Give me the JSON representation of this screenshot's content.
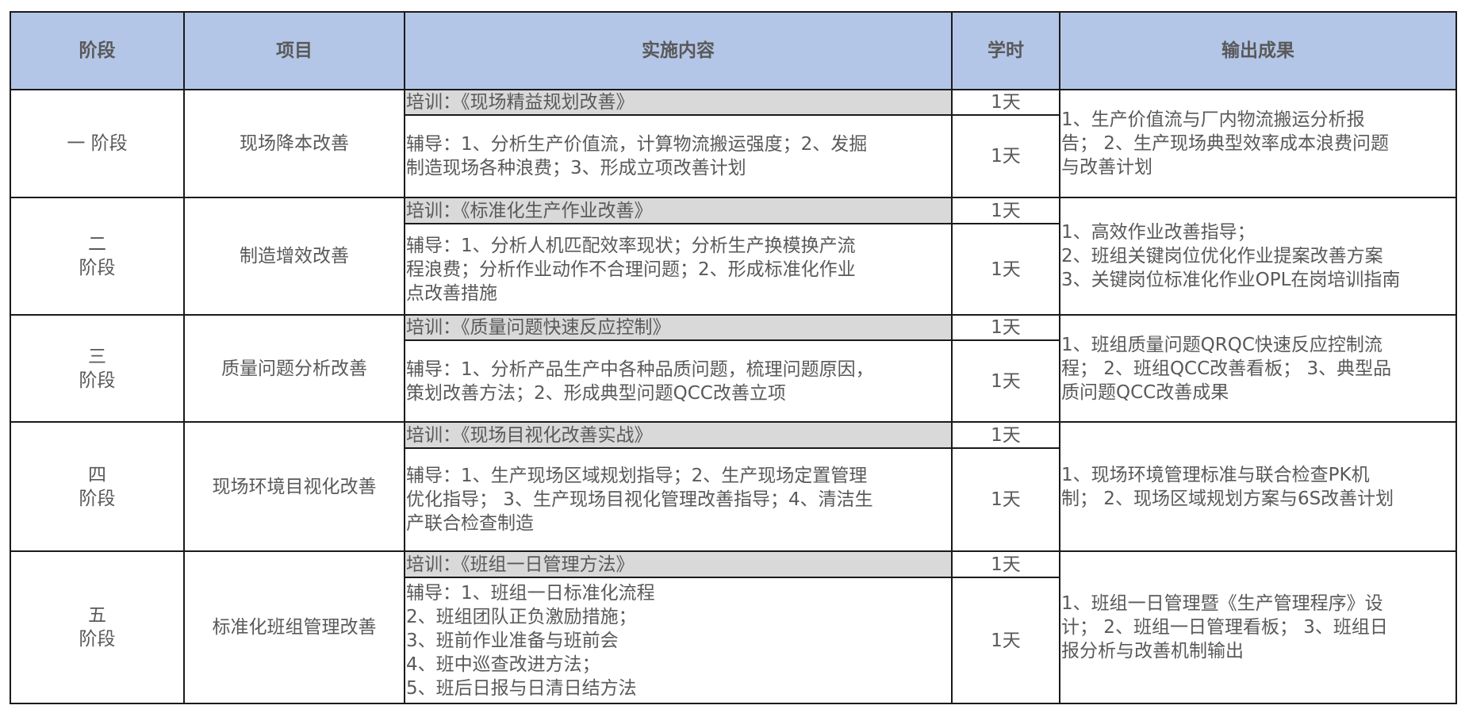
{
  "headers": [
    "阶段",
    "项目",
    "实施内容",
    "学时",
    "输出成果"
  ],
  "rows": [
    {
      "stage": [
        "一 阶段"
      ],
      "project": "现场降本改善",
      "training": "培训：《现场精益规划改善》",
      "training_hours": "1天",
      "coaching": [
        "辅导：1、分析生产价值流，计算物流搬运强度；2、发掘",
        "制造现场各种浪费；3、形成立项改善计划"
      ],
      "coaching_hours": "1天",
      "output": [
        "1、生产价值流与厂内物流搬运分析报",
        "告； 2、生产现场典型效率成本浪费问题",
        "与改善计划"
      ]
    },
    {
      "stage": [
        "二",
        "阶段"
      ],
      "project": "制造增效改善",
      "training": "培训：《标准化生产作业改善》",
      "training_hours": "1天",
      "coaching": [
        "辅导：1、分析人机匹配效率现状；分析生产换模换产流",
        "程浪费；分析作业动作不合理问题；2、形成标准化作业",
        "点改善措施"
      ],
      "coaching_hours": "1天",
      "output": [
        "1、高效作业改善指导；",
        "2、班组关键岗位优化作业提案改善方案",
        "3、关键岗位标准化作业OPL在岗培训指南"
      ]
    },
    {
      "stage": [
        "三",
        "阶段"
      ],
      "project": "质量问题分析改善",
      "training": "培训：《质量问题快速反应控制》",
      "training_hours": "1天",
      "coaching": [
        "辅导：1、分析产品生产中各种品质问题，梳理问题原因，",
        "策划改善方法；2、形成典型问题QCC改善立项"
      ],
      "coaching_hours": "1天",
      "output": [
        "1、班组质量问题QRQC快速反应控制流",
        "程； 2、班组QCC改善看板； 3、典型品",
        "质问题QCC改善成果"
      ]
    },
    {
      "stage": [
        "四",
        "阶段"
      ],
      "project": "现场环境目视化改善",
      "training": "培训：《现场目视化改善实战》",
      "training_hours": "1天",
      "coaching": [
        "辅导：1、生产现场区域规划指导；2、生产现场定置管理",
        "优化指导； 3、生产现场目视化管理改善指导；4、清洁生",
        "产联合检查制造"
      ],
      "coaching_hours": "1天",
      "output": [
        "1、现场环境管理标准与联合检查PK机",
        "制； 2、现场区域规划方案与6S改善计划"
      ]
    },
    {
      "stage": [
        "五",
        "阶段"
      ],
      "project": "标准化班组管理改善",
      "training": "培训：《班组一日管理方法》",
      "training_hours": "1天",
      "coaching": [
        "辅导：1、班组一日标准化流程",
        "2、班组团队正负激励措施；",
        "3、班前作业准备与班前会",
        "4、班中巡查改进方法；",
        "5、班后日报与日清日结方法"
      ],
      "coaching_hours": "1天",
      "output": [
        "1、班组一日管理暨《生产管理程序》设",
        "计； 2、班组一日管理看板； 3、班组日",
        "报分析与改善机制输出"
      ]
    }
  ]
}
